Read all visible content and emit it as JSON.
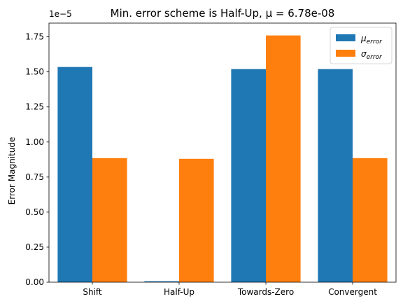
{
  "chart_data": {
    "type": "bar",
    "title": "Min. error scheme is Half-Up, μ = 6.78e-08",
    "xlabel": "",
    "ylabel": "Error Magnitude",
    "offset_label": "1e−5",
    "categories": [
      "Shift",
      "Half-Up",
      "Towards-Zero",
      "Convergent"
    ],
    "series": [
      {
        "name": "μerror",
        "legend_main": "μ",
        "legend_sub": "error",
        "color": "#1f77b4",
        "values": [
          1.535,
          0.00678,
          1.52,
          1.52
        ]
      },
      {
        "name": "σerror",
        "legend_main": "σ",
        "legend_sub": "error",
        "color": "#ff7f0e",
        "values": [
          0.885,
          0.88,
          1.76,
          0.885
        ]
      }
    ],
    "y_ticks": [
      "0.00",
      "0.25",
      "0.50",
      "0.75",
      "1.00",
      "1.25",
      "1.50",
      "1.75"
    ],
    "ylim": [
      0,
      1.848
    ],
    "grid": false,
    "legend_position": "top-right"
  }
}
